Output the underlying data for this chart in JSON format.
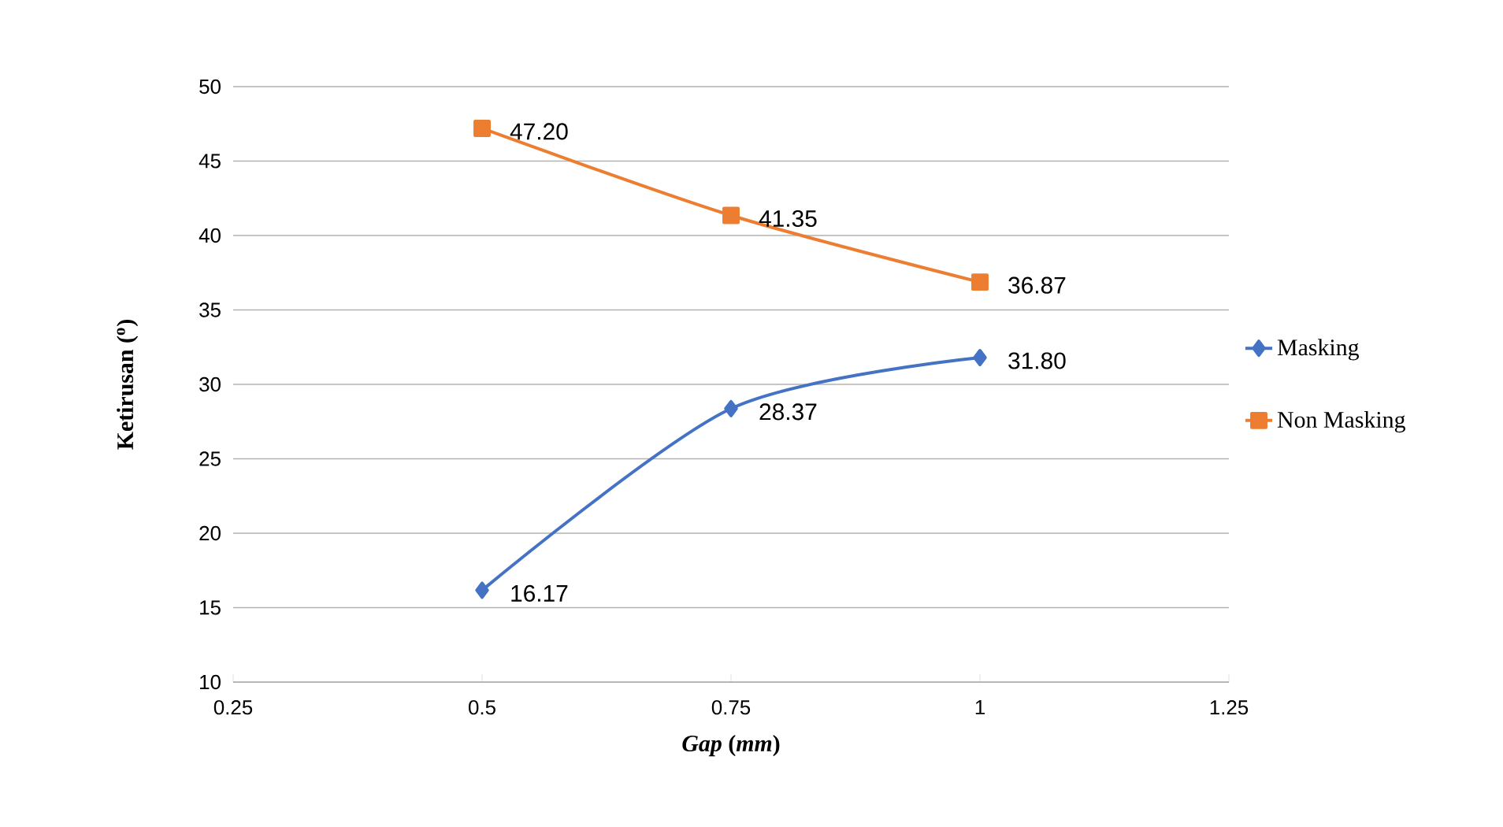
{
  "chart_data": {
    "type": "line",
    "xlabel": "*Gap* (*mm*)",
    "ylabel": "Ketirusan ($^{o}$)",
    "x": [
      0.5,
      0.75,
      1
    ],
    "series": [
      {
        "name": "Masking",
        "color": "#4472c4",
        "marker": "diamond",
        "values": [
          16.17,
          28.37,
          31.8
        ],
        "value_labels": [
          "16.17",
          "28.37",
          "31.80"
        ]
      },
      {
        "name": "Non Masking",
        "color": "#ed7d31",
        "marker": "square",
        "values": [
          47.2,
          41.35,
          36.87
        ],
        "value_labels": [
          "47.20",
          "41.35",
          "36.87"
        ]
      }
    ],
    "xlim": [
      0.25,
      1.25
    ],
    "xticks": [
      0.25,
      0.5,
      0.75,
      1,
      1.25
    ],
    "ylim": [
      10,
      50
    ],
    "yticks": [
      10,
      15,
      20,
      25,
      30,
      35,
      40,
      45,
      50
    ],
    "grid": "y",
    "legend": "right",
    "line_style": "solid"
  }
}
